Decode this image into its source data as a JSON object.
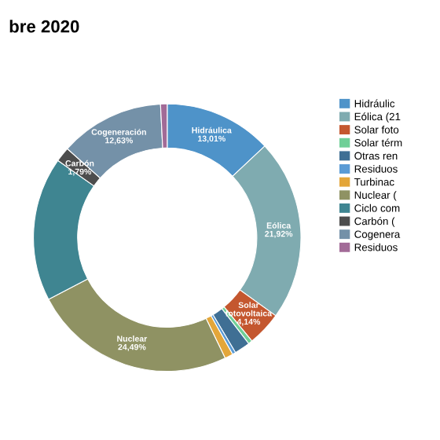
{
  "chart_data": {
    "type": "donut",
    "title": "bre 2020",
    "categories": [
      "Hidráulic",
      "Eólica (21",
      "Solar foto",
      "Solar térm",
      "Otras ren",
      "Residuos",
      "Turbinac",
      "Nuclear (",
      "Ciclo com",
      "Carbón (",
      "Cogenera",
      "Residuos"
    ],
    "values": [
      13.01,
      21.92,
      4.14,
      0.5,
      1.9,
      0.4,
      1.0,
      24.49,
      17.42,
      1.79,
      12.63,
      0.8
    ],
    "colors": [
      "#4e93c9",
      "#7fabb0",
      "#c4572f",
      "#6fcf97",
      "#3f6f94",
      "#5a9bd5",
      "#e3a63a",
      "#8f9263",
      "#3f8591",
      "#4d4d4d",
      "#7491a8",
      "#a26b97"
    ],
    "value_labels": [
      "Hidráulica\n13,01%",
      "Eólica\n21,92%",
      "Solar\nfotovoltaica\n4,14%",
      null,
      null,
      null,
      null,
      "Nuclear\n24,49%",
      null,
      "Carbón\n1,79%",
      "Cogeneración\n12,63%",
      null
    ],
    "legend": "right"
  }
}
